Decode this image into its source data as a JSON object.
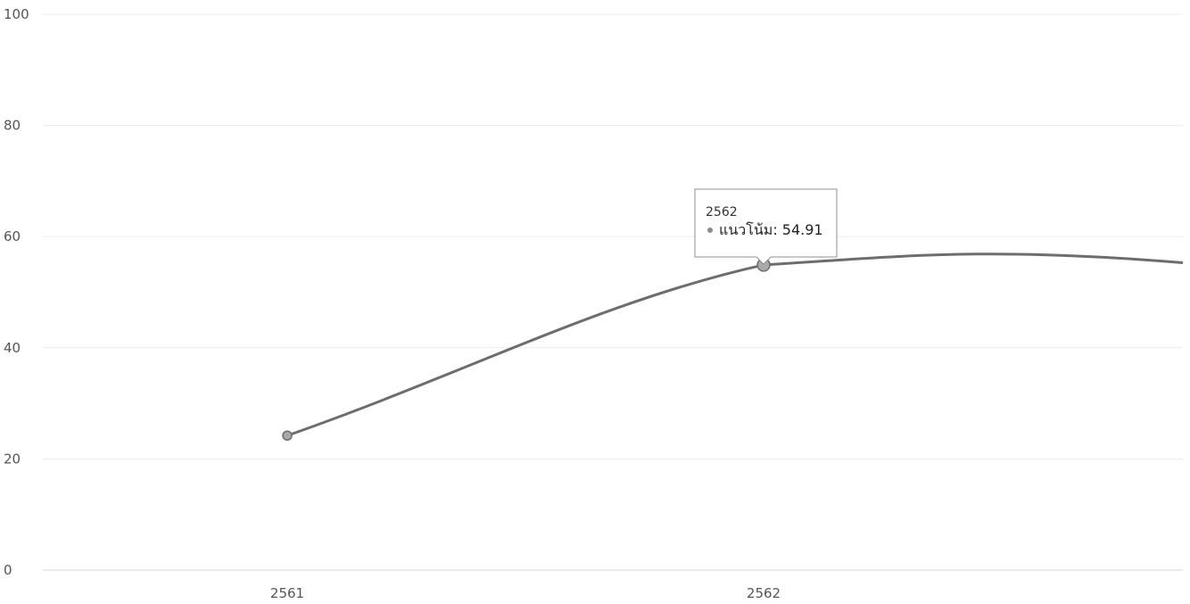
{
  "chart_data": {
    "type": "line",
    "categories": [
      "2561",
      "2562",
      ""
    ],
    "series": [
      {
        "name": "แนวโน้ม",
        "values": [
          24.2,
          54.91,
          55.3
        ]
      }
    ],
    "ylim": [
      0,
      100
    ],
    "yticks": [
      0,
      20,
      40,
      60,
      80,
      100
    ],
    "xticks": [
      "2561",
      "2562"
    ],
    "grid": true,
    "tooltip": {
      "title": "2562",
      "label": "แนวโน้ม: 54.91"
    },
    "colors": {
      "line": "#6d6d6d",
      "point": "#a9a9a9"
    }
  }
}
